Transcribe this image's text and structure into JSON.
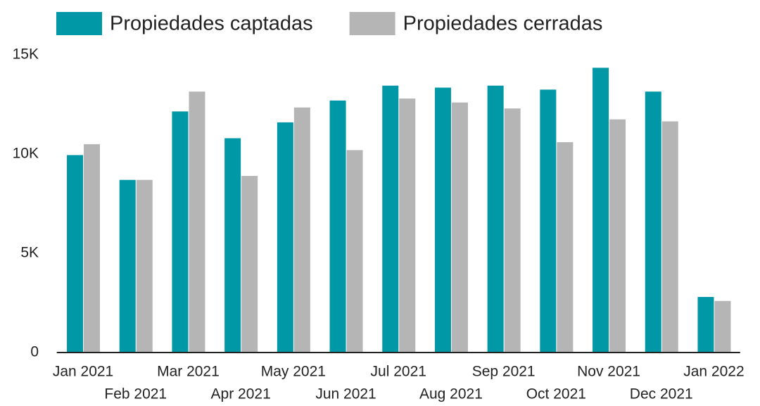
{
  "chart_data": {
    "type": "bar",
    "categories": [
      "Jan 2021",
      "Feb 2021",
      "Mar 2021",
      "Apr 2021",
      "May 2021",
      "Jun 2021",
      "Jul 2021",
      "Aug 2021",
      "Sep 2021",
      "Oct 2021",
      "Nov 2021",
      "Dec 2021",
      "Jan 2022"
    ],
    "series": [
      {
        "name": "Propiedades captadas",
        "color": "#0097a7",
        "values": [
          9950,
          8700,
          12150,
          10800,
          11600,
          12700,
          13450,
          13350,
          13450,
          13250,
          14350,
          13150,
          2800
        ]
      },
      {
        "name": "Propiedades cerradas",
        "color": "#b5b5b5",
        "values": [
          10500,
          8700,
          13150,
          8900,
          12350,
          10200,
          12800,
          12600,
          12300,
          10600,
          11750,
          11650,
          2600
        ]
      }
    ],
    "ylim": [
      0,
      15000
    ],
    "yticks": [
      0,
      {
        "value": 5000,
        "label": "5K"
      },
      {
        "value": 10000,
        "label": "10K"
      },
      {
        "value": 15000,
        "label": "15K"
      }
    ],
    "legend": "top-left"
  }
}
